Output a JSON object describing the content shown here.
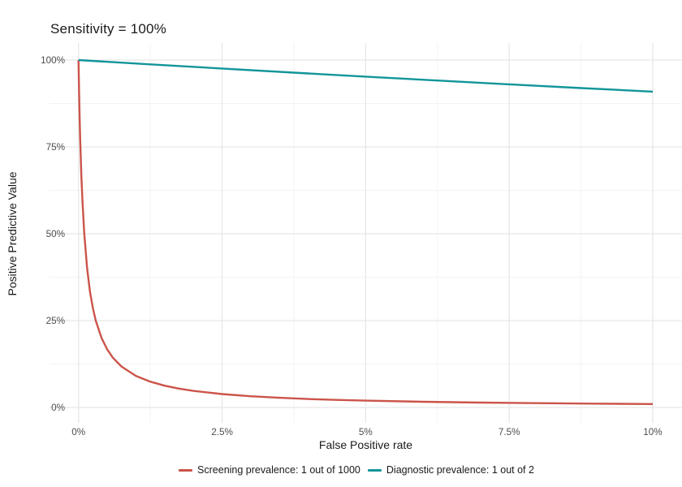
{
  "title": "Sensitivity = 100%",
  "chart_data": {
    "type": "line",
    "title": "Sensitivity = 100%",
    "xlabel": "False Positive rate",
    "ylabel": "Positive Predictive Value",
    "xlim": [
      0,
      10
    ],
    "ylim": [
      0,
      100
    ],
    "grid": true,
    "legend_position": "bottom",
    "x_ticks": {
      "values": [
        0,
        2.5,
        5,
        7.5,
        10
      ],
      "labels": [
        "0%",
        "2.5%",
        "5%",
        "7.5%",
        "10%"
      ],
      "minor": [
        1.25,
        3.75,
        6.25,
        8.75
      ]
    },
    "y_ticks": {
      "values": [
        0,
        25,
        50,
        75,
        100
      ],
      "labels": [
        "0%",
        "25%",
        "50%",
        "75%",
        "100%"
      ],
      "minor": [
        12.5,
        37.5,
        62.5,
        87.5
      ]
    },
    "series": [
      {
        "name": "Screening prevalence: 1 out of 1000",
        "color": "#CB544A",
        "sensitivity_pct": 100,
        "prevalence": "1 out of 1000",
        "x": [
          0,
          0.01,
          0.02,
          0.03,
          0.05,
          0.07,
          0.1,
          0.15,
          0.2,
          0.25,
          0.3,
          0.4,
          0.5,
          0.6,
          0.75,
          1,
          1.25,
          1.5,
          1.75,
          2,
          2.5,
          3,
          3.5,
          4,
          4.5,
          5,
          6,
          7,
          8,
          9,
          10
        ],
        "y": [
          100,
          90.91,
          83.35,
          76.95,
          66.69,
          58.85,
          50.03,
          40.03,
          33.36,
          28.59,
          25.02,
          20.02,
          16.69,
          14.3,
          11.78,
          9.1,
          7.42,
          6.26,
          5.41,
          4.77,
          3.85,
          3.23,
          2.78,
          2.44,
          2.18,
          1.96,
          1.64,
          1.41,
          1.24,
          1.1,
          0.99
        ]
      },
      {
        "name": "Diagnostic prevalence: 1 out of 2",
        "color": "#12959A",
        "sensitivity_pct": 100,
        "prevalence": "1 out of 2",
        "x": [
          0,
          1.25,
          2.5,
          3.75,
          5,
          6.25,
          7.5,
          8.75,
          10
        ],
        "y": [
          100,
          98.77,
          97.56,
          96.39,
          95.24,
          94.12,
          93.02,
          91.95,
          90.91
        ]
      }
    ]
  },
  "colors": {
    "background": "#FFFFFF",
    "grid_major": "#E7E7E7",
    "grid_minor": "#F3F3F3",
    "tick_label": "#4D4D4D",
    "text": "#1A1A1A"
  }
}
